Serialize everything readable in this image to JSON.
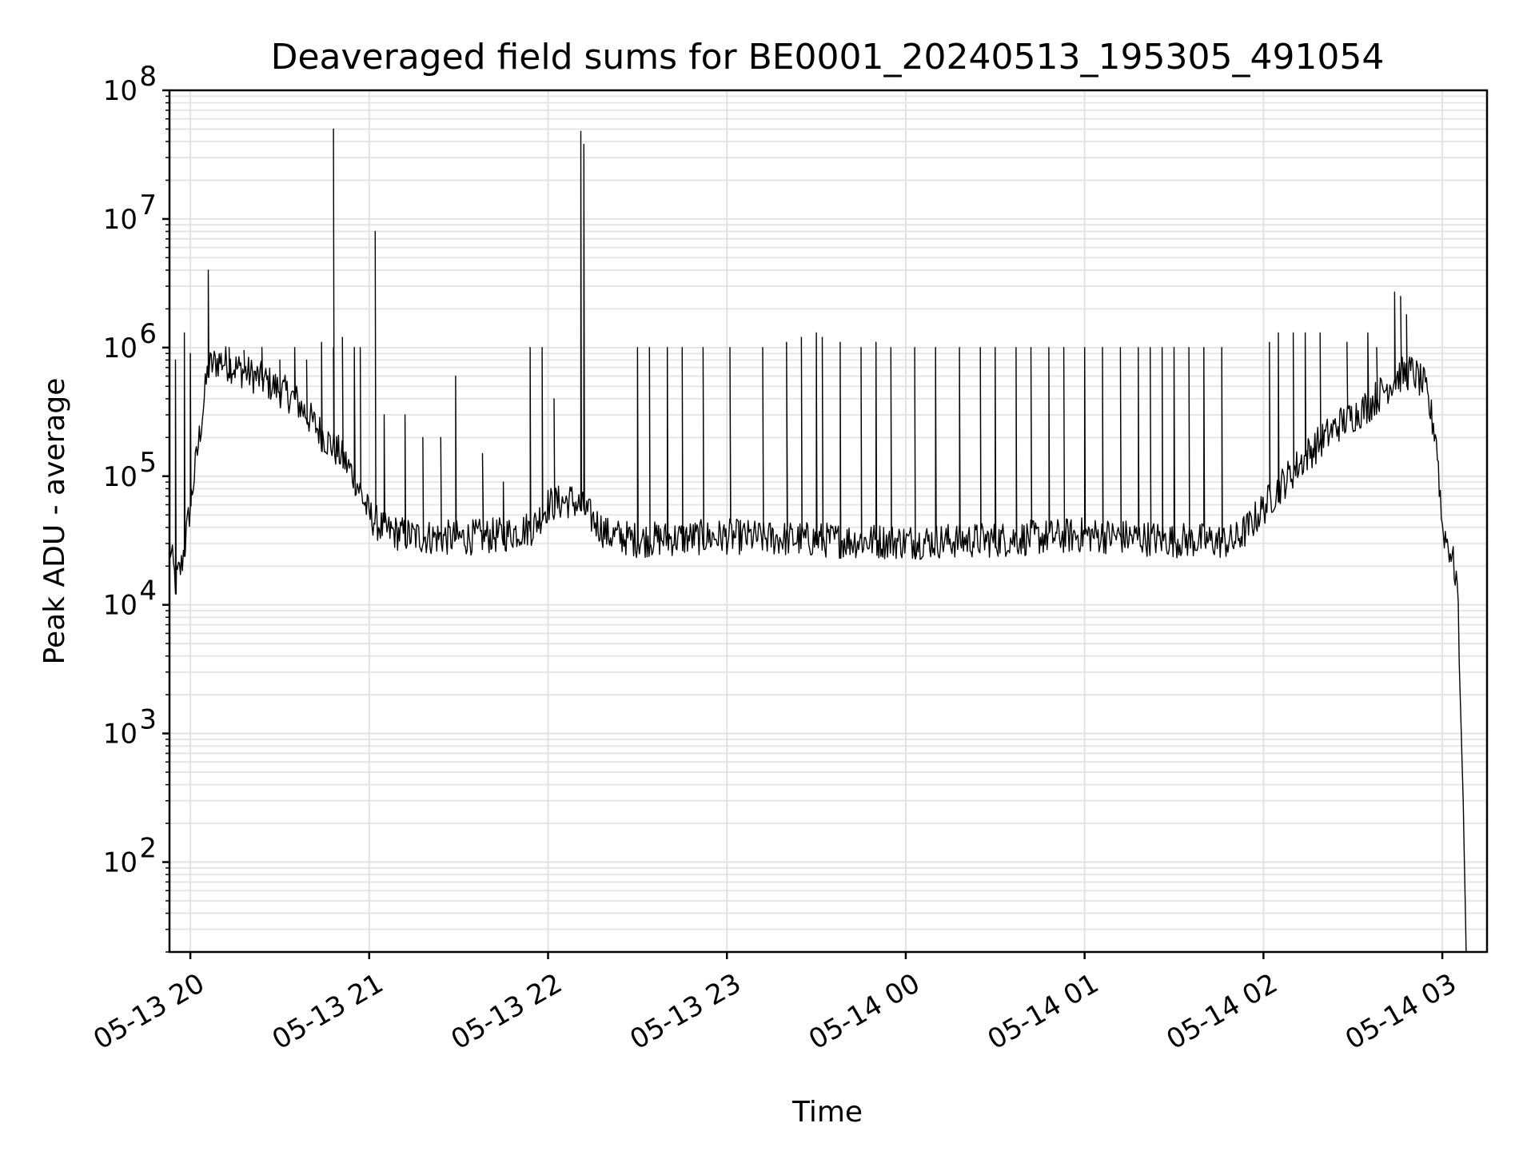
{
  "chart_data": {
    "type": "line",
    "title": "Deaveraged field sums for BE0001_20240513_195305_491054",
    "xlabel": "Time",
    "ylabel": "Peak ADU - average",
    "yscale": "log",
    "ylim": [
      20,
      100000000
    ],
    "xlim": [
      "2024-05-13 19:53:00",
      "2024-05-14 03:15:00"
    ],
    "grid": true,
    "line_color": "#000000",
    "x_ticks": [
      {
        "t": "2024-05-13 20:00:00",
        "label": "05-13 20"
      },
      {
        "t": "2024-05-13 21:00:00",
        "label": "05-13 21"
      },
      {
        "t": "2024-05-13 22:00:00",
        "label": "05-13 22"
      },
      {
        "t": "2024-05-13 23:00:00",
        "label": "05-13 23"
      },
      {
        "t": "2024-05-14 00:00:00",
        "label": "05-14 00"
      },
      {
        "t": "2024-05-14 01:00:00",
        "label": "05-14 01"
      },
      {
        "t": "2024-05-14 02:00:00",
        "label": "05-14 02"
      },
      {
        "t": "2024-05-14 03:00:00",
        "label": "05-14 03"
      }
    ],
    "y_ticks": [
      {
        "v": 100,
        "base": "10",
        "exp": "2"
      },
      {
        "v": 1000,
        "base": "10",
        "exp": "3"
      },
      {
        "v": 10000,
        "base": "10",
        "exp": "4"
      },
      {
        "v": 100000,
        "base": "10",
        "exp": "5"
      },
      {
        "v": 1000000,
        "base": "10",
        "exp": "6"
      },
      {
        "v": 10000000,
        "base": "10",
        "exp": "7"
      },
      {
        "v": 100000000,
        "base": "10",
        "exp": "8"
      }
    ],
    "series": [
      {
        "points": [
          [
            "2024-05-13 19:53:00",
            30000
          ],
          [
            "2024-05-13 19:55:00",
            15000
          ],
          [
            "2024-05-13 19:57:00",
            20000
          ],
          [
            "2024-05-13 19:59:00",
            40000
          ],
          [
            "2024-05-13 20:03:00",
            200000
          ],
          [
            "2024-05-13 20:06:00",
            700000
          ],
          [
            "2024-05-13 20:10:00",
            800000
          ],
          [
            "2024-05-13 20:15:00",
            700000
          ],
          [
            "2024-05-13 20:25:00",
            550000
          ],
          [
            "2024-05-13 20:35:00",
            400000
          ],
          [
            "2024-05-13 20:45:00",
            200000
          ],
          [
            "2024-05-13 20:50:00",
            150000
          ],
          [
            "2024-05-13 20:55:00",
            100000
          ],
          [
            "2024-05-13 21:00:00",
            50000
          ],
          [
            "2024-05-13 21:05:00",
            38000
          ],
          [
            "2024-05-13 21:15:00",
            34000
          ],
          [
            "2024-05-13 21:30:00",
            33000
          ],
          [
            "2024-05-13 21:45:00",
            35000
          ],
          [
            "2024-05-13 21:55:00",
            40000
          ],
          [
            "2024-05-13 22:00:00",
            60000
          ],
          [
            "2024-05-13 22:08:00",
            65000
          ],
          [
            "2024-05-13 22:12:00",
            55000
          ],
          [
            "2024-05-13 22:20:00",
            35000
          ],
          [
            "2024-05-13 22:30:00",
            32000
          ],
          [
            "2024-05-13 23:00:00",
            34000
          ],
          [
            "2024-05-13 23:30:00",
            32000
          ],
          [
            "2024-05-14 00:00:00",
            31000
          ],
          [
            "2024-05-14 00:30:00",
            32000
          ],
          [
            "2024-05-14 01:00:00",
            35000
          ],
          [
            "2024-05-14 01:30:00",
            32000
          ],
          [
            "2024-05-14 01:50:00",
            31000
          ],
          [
            "2024-05-14 01:55:00",
            40000
          ],
          [
            "2024-05-14 02:05:00",
            80000
          ],
          [
            "2024-05-14 02:15:00",
            150000
          ],
          [
            "2024-05-14 02:25:00",
            250000
          ],
          [
            "2024-05-14 02:35:00",
            350000
          ],
          [
            "2024-05-14 02:45:00",
            600000
          ],
          [
            "2024-05-14 02:50:00",
            650000
          ],
          [
            "2024-05-14 02:54:00",
            500000
          ],
          [
            "2024-05-14 02:58:00",
            200000
          ],
          [
            "2024-05-14 03:00:00",
            40000
          ],
          [
            "2024-05-14 03:03:00",
            25000
          ],
          [
            "2024-05-14 03:05:00",
            15000
          ],
          [
            "2024-05-14 03:06:00",
            2000
          ],
          [
            "2024-05-14 03:07:00",
            300
          ],
          [
            "2024-05-14 03:08:00",
            20
          ]
        ],
        "spikes": [
          [
            "2024-05-13 19:55:00",
            800000
          ],
          [
            "2024-05-13 19:58:00",
            1300000
          ],
          [
            "2024-05-13 20:00:00",
            900000
          ],
          [
            "2024-05-13 20:06:00",
            4000000
          ],
          [
            "2024-05-13 20:13:00",
            1000000
          ],
          [
            "2024-05-13 20:18:00",
            950000
          ],
          [
            "2024-05-13 20:24:00",
            1000000
          ],
          [
            "2024-05-13 20:30:00",
            800000
          ],
          [
            "2024-05-13 20:35:00",
            1000000
          ],
          [
            "2024-05-13 20:39:00",
            800000
          ],
          [
            "2024-05-13 20:44:00",
            1100000
          ],
          [
            "2024-05-13 20:48:00",
            1000000
          ],
          [
            "2024-05-13 20:55:00",
            1000000
          ],
          [
            "2024-05-13 20:48:00",
            50000000
          ],
          [
            "2024-05-13 20:51:00",
            1200000
          ],
          [
            "2024-05-13 21:02:00",
            8000000
          ],
          [
            "2024-05-13 20:57:00",
            1000000
          ],
          [
            "2024-05-13 21:05:00",
            300000
          ],
          [
            "2024-05-13 21:12:00",
            300000
          ],
          [
            "2024-05-13 21:18:00",
            200000
          ],
          [
            "2024-05-13 21:24:00",
            200000
          ],
          [
            "2024-05-13 21:29:00",
            600000
          ],
          [
            "2024-05-13 21:38:00",
            150000
          ],
          [
            "2024-05-13 21:45:00",
            90000
          ],
          [
            "2024-05-13 21:54:00",
            1000000
          ],
          [
            "2024-05-13 21:58:00",
            1000000
          ],
          [
            "2024-05-13 22:02:00",
            400000
          ],
          [
            "2024-05-13 22:11:00",
            48000000
          ],
          [
            "2024-05-13 22:12:00",
            38000000
          ],
          [
            "2024-05-13 22:30:00",
            1000000
          ],
          [
            "2024-05-13 22:34:00",
            1000000
          ],
          [
            "2024-05-13 22:40:00",
            1000000
          ],
          [
            "2024-05-13 22:45:00",
            1000000
          ],
          [
            "2024-05-13 22:52:00",
            1000000
          ],
          [
            "2024-05-13 23:01:00",
            1000000
          ],
          [
            "2024-05-13 23:12:00",
            1000000
          ],
          [
            "2024-05-13 23:20:00",
            1100000
          ],
          [
            "2024-05-13 23:25:00",
            1200000
          ],
          [
            "2024-05-13 23:30:00",
            1300000
          ],
          [
            "2024-05-13 23:32:00",
            1200000
          ],
          [
            "2024-05-13 23:38:00",
            1100000
          ],
          [
            "2024-05-13 23:45:00",
            1000000
          ],
          [
            "2024-05-13 23:50:00",
            1100000
          ],
          [
            "2024-05-13 23:55:00",
            1000000
          ],
          [
            "2024-05-14 00:03:00",
            1000000
          ],
          [
            "2024-05-14 00:10:00",
            1000000
          ],
          [
            "2024-05-14 00:18:00",
            1000000
          ],
          [
            "2024-05-14 00:25:00",
            1000000
          ],
          [
            "2024-05-14 00:30:00",
            1000000
          ],
          [
            "2024-05-14 00:37:00",
            1000000
          ],
          [
            "2024-05-14 00:42:00",
            1000000
          ],
          [
            "2024-05-14 00:48:00",
            1000000
          ],
          [
            "2024-05-14 00:53:00",
            1000000
          ],
          [
            "2024-05-14 01:00:00",
            1000000
          ],
          [
            "2024-05-14 01:06:00",
            1000000
          ],
          [
            "2024-05-14 01:12:00",
            1000000
          ],
          [
            "2024-05-14 01:18:00",
            1000000
          ],
          [
            "2024-05-14 01:22:00",
            1000000
          ],
          [
            "2024-05-14 01:26:00",
            1000000
          ],
          [
            "2024-05-14 01:30:00",
            1000000
          ],
          [
            "2024-05-14 01:35:00",
            1000000
          ],
          [
            "2024-05-14 01:40:00",
            1000000
          ],
          [
            "2024-05-14 01:46:00",
            1000000
          ],
          [
            "2024-05-14 02:02:00",
            1100000
          ],
          [
            "2024-05-14 02:05:00",
            1300000
          ],
          [
            "2024-05-14 02:10:00",
            1300000
          ],
          [
            "2024-05-14 02:14:00",
            1300000
          ],
          [
            "2024-05-14 02:19:00",
            1300000
          ],
          [
            "2024-05-14 02:28:00",
            1100000
          ],
          [
            "2024-05-14 02:35:00",
            1300000
          ],
          [
            "2024-05-14 02:38:00",
            1000000
          ],
          [
            "2024-05-14 02:44:00",
            2700000
          ],
          [
            "2024-05-14 02:46:00",
            2500000
          ],
          [
            "2024-05-14 02:48:00",
            1800000
          ]
        ]
      }
    ]
  }
}
